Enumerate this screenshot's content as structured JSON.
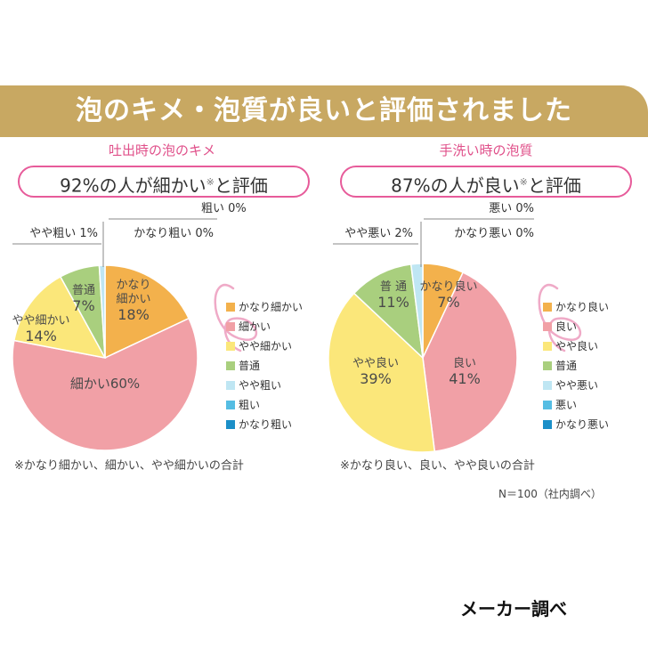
{
  "header": {
    "title": "泡のキメ・泡質が良いと評価されました"
  },
  "colors": {
    "banner": "#c8a862",
    "accent_pink": "#e75b9a",
    "slice_top": "#f3b14c",
    "slice_good": "#f1a0a6",
    "slice_slight": "#fbe77a",
    "slice_normal": "#a9cf7e",
    "slice_slight_neg": "#bfe6f3",
    "slice_neg": "#55bde3",
    "slice_very_neg": "#1b8fc8"
  },
  "panels": [
    {
      "subtitle": "吐出時の泡のキメ",
      "headline": "92%の人が細かい",
      "headline_note": "※",
      "headline_suffix": "と評価",
      "footnote": "※かなり細かい、細かい、やや細かいの合計"
    },
    {
      "subtitle": "手洗い時の泡質",
      "headline": "87%の人が良い",
      "headline_note": "※",
      "headline_suffix": "と評価",
      "footnote": "※かなり良い、良い、やや良いの合計"
    }
  ],
  "chart_data": [
    {
      "type": "pie",
      "title": "吐出時の泡のキメ",
      "legend_position": "right",
      "slices": [
        {
          "label": "かなり細かい",
          "value": 18,
          "color": "#f3b14c",
          "display": "かなり\n細かい\n18%"
        },
        {
          "label": "細かい",
          "value": 60,
          "color": "#f1a0a6",
          "display": "細かい60%"
        },
        {
          "label": "やや細かい",
          "value": 14,
          "color": "#fbe77a",
          "display": "やや細かい\n14%"
        },
        {
          "label": "普通",
          "value": 7,
          "color": "#a9cf7e",
          "display": "普通\n7%"
        },
        {
          "label": "やや粗い",
          "value": 1,
          "color": "#bfe6f3",
          "display": "やや粗い 1%"
        },
        {
          "label": "粗い",
          "value": 0,
          "color": "#55bde3",
          "display": "粗い 0%"
        },
        {
          "label": "かなり粗い",
          "value": 0,
          "color": "#1b8fc8",
          "display": "かなり粗い 0%"
        }
      ]
    },
    {
      "type": "pie",
      "title": "手洗い時の泡質",
      "legend_position": "right",
      "slices": [
        {
          "label": "かなり良い",
          "value": 7,
          "color": "#f3b14c",
          "display": "かなり良い\n7%"
        },
        {
          "label": "良い",
          "value": 41,
          "color": "#f1a0a6",
          "display": "良い\n41%"
        },
        {
          "label": "やや良い",
          "value": 39,
          "color": "#fbe77a",
          "display": "やや良い\n39%"
        },
        {
          "label": "普通",
          "value": 11,
          "color": "#a9cf7e",
          "display": "普 通\n11%"
        },
        {
          "label": "やや悪い",
          "value": 2,
          "color": "#bfe6f3",
          "display": "やや悪い 2%"
        },
        {
          "label": "悪い",
          "value": 0,
          "color": "#55bde3",
          "display": "悪い 0%"
        },
        {
          "label": "かなり悪い",
          "value": 0,
          "color": "#1b8fc8",
          "display": "かなり悪い 0%"
        }
      ]
    }
  ],
  "survey_note": "N＝100（社内調べ）",
  "maker_note": "メーカー調べ"
}
